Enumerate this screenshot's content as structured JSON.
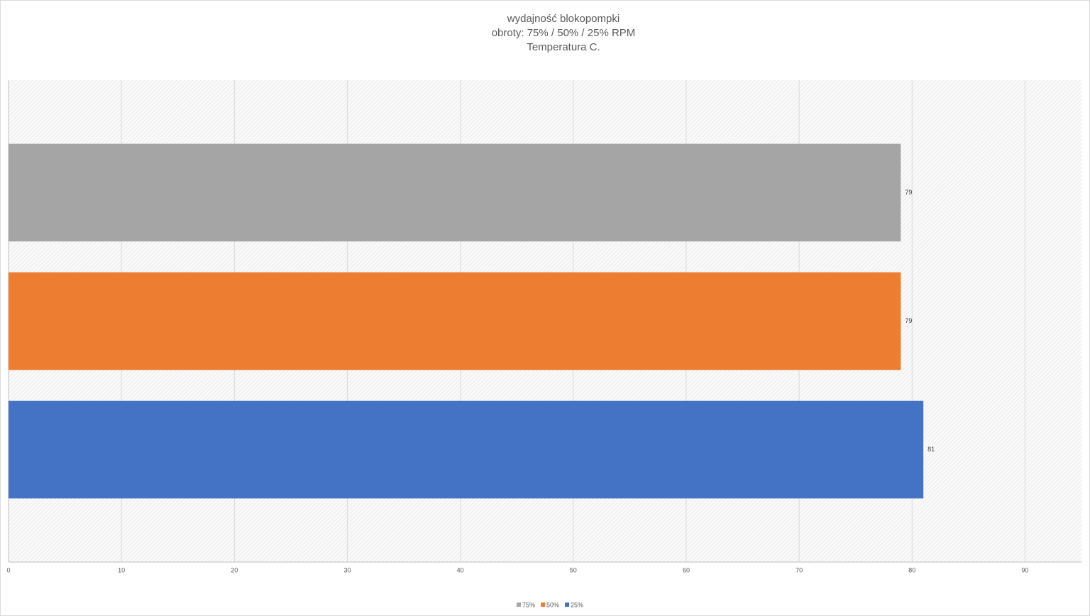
{
  "chart_data": {
    "type": "hbar",
    "title": [
      "wydajność blokopompki",
      "obroty: 75% / 50% / 25% RPM",
      "Temperatura C."
    ],
    "categories": [
      null
    ],
    "series": [
      {
        "name": "75%",
        "color": "#a5a5a5",
        "values": [
          79
        ]
      },
      {
        "name": "50%",
        "color": "#ed7d31",
        "values": [
          79
        ]
      },
      {
        "name": "25%",
        "color": "#4472c4",
        "values": [
          81
        ]
      }
    ],
    "xlim": [
      0,
      95
    ],
    "xticks": [
      0,
      10,
      20,
      30,
      40,
      50,
      60,
      70,
      80,
      90
    ],
    "grid": true,
    "legend": "bottom"
  }
}
